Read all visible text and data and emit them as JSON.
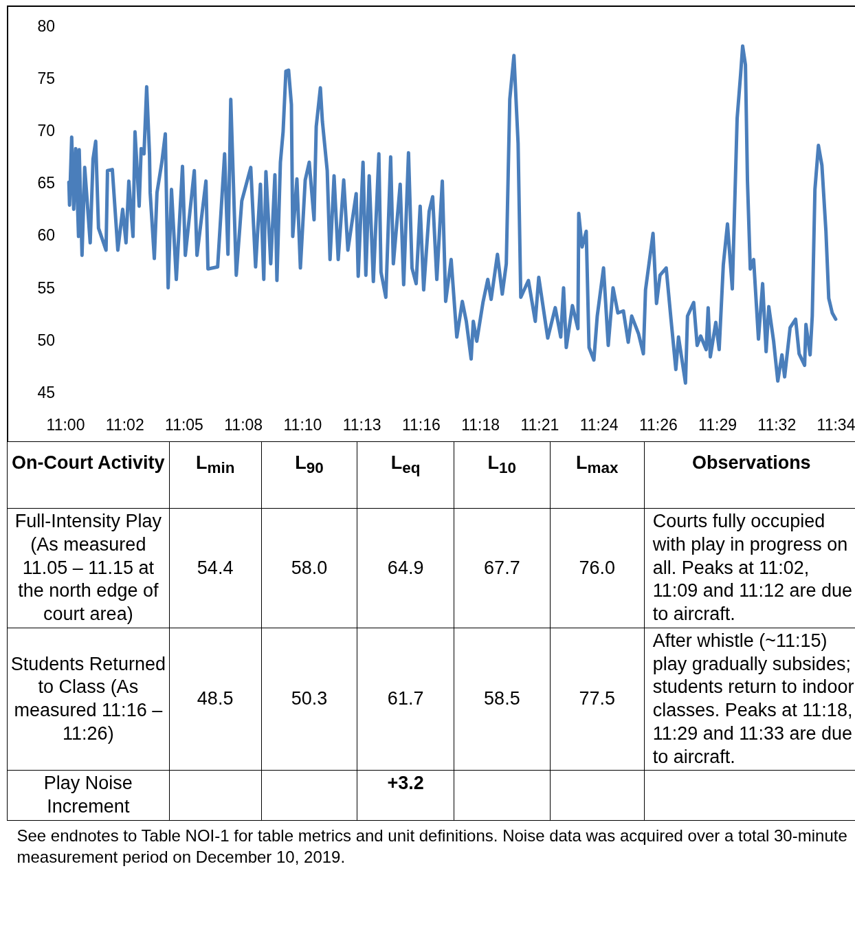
{
  "chart_data": [
    {
      "type": "line",
      "xlim": [
        10.99733,
        11.57172
      ],
      "ylim": [
        45,
        80
      ],
      "yticks": [
        45,
        50,
        55,
        60,
        65,
        70,
        75,
        80
      ],
      "xticks": [
        {
          "value": 10.99733,
          "label": "11:00"
        },
        {
          "value": 11.04152,
          "label": "11:02"
        },
        {
          "value": 11.0857,
          "label": "11:05"
        },
        {
          "value": 11.12988,
          "label": "11:08"
        },
        {
          "value": 11.17407,
          "label": "11:10"
        },
        {
          "value": 11.21825,
          "label": "11:13"
        },
        {
          "value": 11.26243,
          "label": "11:16"
        },
        {
          "value": 11.30662,
          "label": "11:18"
        },
        {
          "value": 11.3508,
          "label": "11:21"
        },
        {
          "value": 11.39498,
          "label": "11:24"
        },
        {
          "value": 11.43917,
          "label": "11:26"
        },
        {
          "value": 11.48335,
          "label": "11:29"
        },
        {
          "value": 11.52753,
          "label": "11:32"
        },
        {
          "value": 11.57172,
          "label": "11:34"
        }
      ],
      "line_style": "solid",
      "marker": "none",
      "series": [
        {
          "color": "#4a7ebb",
          "x": [
            11.0,
            11.0005,
            11.0021,
            11.0036,
            11.0051,
            11.0072,
            11.0077,
            11.0098,
            11.0118,
            11.0159,
            11.018,
            11.02,
            11.0221,
            11.0277,
            11.0288,
            11.0324,
            11.0365,
            11.0401,
            11.0426,
            11.0447,
            11.0478,
            11.0493,
            11.0524,
            11.0539,
            11.056,
            11.058,
            11.0601,
            11.0606,
            11.0637,
            11.0657,
            11.0693,
            11.0719,
            11.074,
            11.0765,
            11.0801,
            11.0847,
            11.0868,
            11.0935,
            11.0955,
            11.1022,
            11.1037,
            11.1109,
            11.1161,
            11.1186,
            11.1207,
            11.1248,
            11.1289,
            11.1356,
            11.1392,
            11.1428,
            11.1453,
            11.1469,
            11.1505,
            11.1536,
            11.1551,
            11.1577,
            11.1597,
            11.1618,
            11.1638,
            11.1659,
            11.1669,
            11.17,
            11.1726,
            11.1762,
            11.1792,
            11.1828,
            11.1844,
            11.1875,
            11.189,
            11.1926,
            11.1947,
            11.1977,
            11.2008,
            11.2049,
            11.208,
            11.2142,
            11.2157,
            11.2193,
            11.2214,
            11.2239,
            11.227,
            11.2311,
            11.2327,
            11.2363,
            11.2399,
            11.2419,
            11.247,
            11.2496,
            11.2532,
            11.2558,
            11.2589,
            11.2619,
            11.2645,
            11.2686,
            11.2712,
            11.2743,
            11.2784,
            11.2809,
            11.285,
            11.2892,
            11.2933,
            11.2963,
            11.2999,
            11.3015,
            11.3041,
            11.3087,
            11.3123,
            11.3148,
            11.3195,
            11.3231,
            11.3261,
            11.3287,
            11.3318,
            11.3349,
            11.3369,
            11.3426,
            11.3477,
            11.3503,
            11.357,
            11.3626,
            11.3667,
            11.3688,
            11.3708,
            11.3754,
            11.3795,
            11.3801,
            11.3826,
            11.3857,
            11.3878,
            11.3914,
            11.3939,
            11.3986,
            11.4021,
            11.4057,
            11.4093,
            11.4134,
            11.417,
            11.4196,
            11.4247,
            11.4283,
            11.4299,
            11.4355,
            11.4381,
            11.4407,
            11.4453,
            11.4489,
            11.4525,
            11.4545,
            11.4597,
            11.4612,
            11.4658,
            11.4684,
            11.471,
            11.4751,
            11.4766,
            11.4782,
            11.4823,
            11.4848,
            11.4879,
            11.491,
            11.4946,
            11.4982,
            11.5008,
            11.5023,
            11.5044,
            11.5059,
            11.508,
            11.5105,
            11.5141,
            11.5172,
            11.5198,
            11.5218,
            11.5254,
            11.5285,
            11.5316,
            11.5336,
            11.5377,
            11.5418,
            11.5444,
            11.5485,
            11.5495,
            11.5526,
            11.5542,
            11.5562,
            11.5588,
            11.5614,
            11.5644,
            11.5665,
            11.5691,
            11.5717
          ],
          "values": [
            65.1,
            62.9,
            69.4,
            62.5,
            68.3,
            59.9,
            68.2,
            58.1,
            66.5,
            59.3,
            67.3,
            69.0,
            60.7,
            58.6,
            66.2,
            66.3,
            58.6,
            62.5,
            59.3,
            65.2,
            59.9,
            69.9,
            62.8,
            68.3,
            67.8,
            74.2,
            67.8,
            64.1,
            57.8,
            64.1,
            67.0,
            69.7,
            55.0,
            64.4,
            55.8,
            66.6,
            58.1,
            66.2,
            58.1,
            65.2,
            56.8,
            57.0,
            67.8,
            58.2,
            73.0,
            56.2,
            63.3,
            66.5,
            57.0,
            64.9,
            55.8,
            66.1,
            57.3,
            65.8,
            55.7,
            67.0,
            69.9,
            75.7,
            75.8,
            72.5,
            59.9,
            65.4,
            56.9,
            65.3,
            67.0,
            61.5,
            70.4,
            74.1,
            70.9,
            66.2,
            57.7,
            65.7,
            57.7,
            65.3,
            58.6,
            64.0,
            56.1,
            67.0,
            56.2,
            65.7,
            55.6,
            67.8,
            56.5,
            54.1,
            67.5,
            57.3,
            64.9,
            55.3,
            67.9,
            56.9,
            55.4,
            62.8,
            54.8,
            62.3,
            63.7,
            55.8,
            65.2,
            53.7,
            57.7,
            50.3,
            53.7,
            51.8,
            48.2,
            51.8,
            49.9,
            53.6,
            55.8,
            53.9,
            58.2,
            54.4,
            57.3,
            73.0,
            77.2,
            68.8,
            54.1,
            55.7,
            51.8,
            56.0,
            50.2,
            53.1,
            50.3,
            55.0,
            49.3,
            53.3,
            51.1,
            62.1,
            58.9,
            60.4,
            49.3,
            48.1,
            52.3,
            56.9,
            49.5,
            55.0,
            52.6,
            52.8,
            49.8,
            52.3,
            50.6,
            48.7,
            54.8,
            60.2,
            53.5,
            56.2,
            56.9,
            52.0,
            47.2,
            50.3,
            45.9,
            52.3,
            53.6,
            49.5,
            50.4,
            49.1,
            53.1,
            48.4,
            51.7,
            49.1,
            57.2,
            61.1,
            54.9,
            71.2,
            75.4,
            78.1,
            76.3,
            65.2,
            56.8,
            57.7,
            50.1,
            55.4,
            48.9,
            53.2,
            49.9,
            46.1,
            48.6,
            46.5,
            51.2,
            52.0,
            48.7,
            47.6,
            51.5,
            48.6,
            52.3,
            64.4,
            68.6,
            66.7,
            60.4,
            54.0,
            52.6,
            52.0
          ]
        }
      ]
    },
    {
      "type": "other",
      "categories": [
        "On-Court Activity",
        "L$_{min}$",
        "L$_{90}$",
        "L$_{eq}$",
        "L$_{10}$",
        "L$_{max}$",
        "Observations"
      ],
      "y_categories": [
        "Full-Intensity Play (As measured 11.05 – 11.15 at the north edge of court area)",
        "Students Returned to Class (As measured 11:16 – 11:26)",
        "Play Noise Increment"
      ],
      "cell_labels": [
        [
          "54.4",
          "58.0",
          "64.9",
          "67.7",
          "76.0",
          "Courts fully occupied with play in progress on all. Peaks at 11:02, 11:09 and 11:12 are due to aircraft."
        ],
        [
          "48.5",
          "50.3",
          "61.7",
          "58.5",
          "77.5",
          "After whistle (~11:15) play gradually subsides; students return to indoor classes. Peaks at 11:18, 11:29 and 11:33 are due to aircraft."
        ],
        [
          null,
          null,
          "+3.2",
          null,
          null,
          null
        ]
      ],
      "annotations": [
        "See endnotes to Table NOI-1 for table metrics and unit definitions. Noise data was acquired over a total 30-minute measurement period on December 10, 2019."
      ]
    }
  ]
}
